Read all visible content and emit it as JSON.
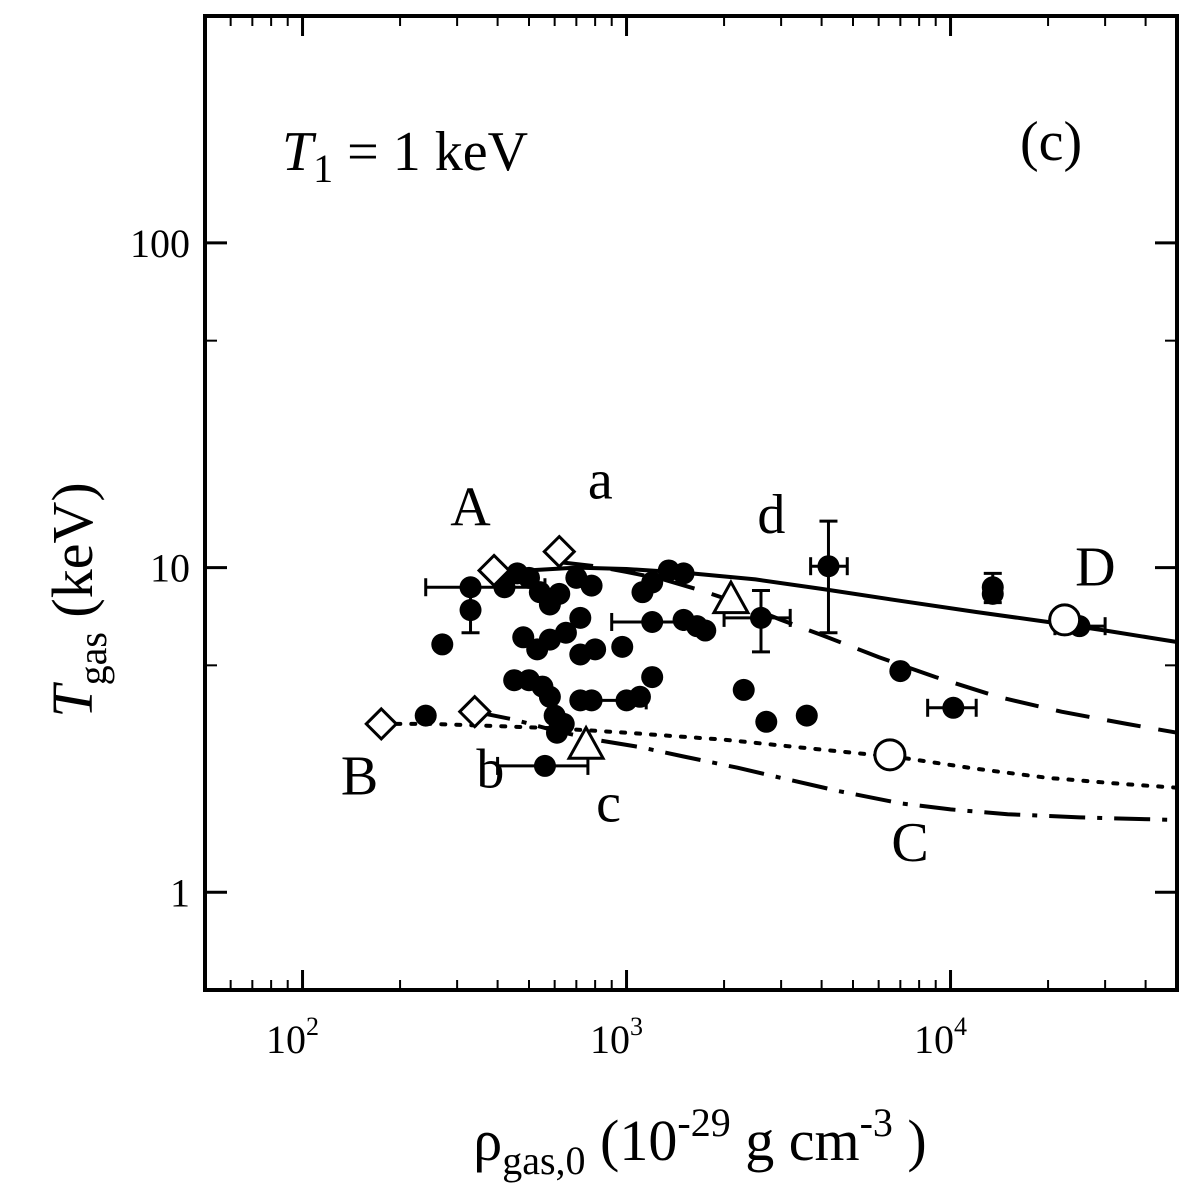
{
  "chart_data": {
    "type": "scatter",
    "title": "",
    "panel_label": "(c)",
    "annotation": {
      "symbol": "T",
      "subscript": "1",
      "text": " = 1 keV"
    },
    "xlabel": {
      "symbol": "ρ",
      "subscript": "gas,0",
      "text_pre": " (10",
      "exp": "-29",
      "text_mid": " g cm",
      "exp2": "-3",
      "text_post": " )"
    },
    "ylabel": {
      "symbol": "T",
      "subscript": "gas",
      "text": " (keV)"
    },
    "x_scale": "log",
    "y_scale": "log",
    "xlim": [
      50,
      50000
    ],
    "ylim": [
      0.5,
      500
    ],
    "grid": false,
    "x_ticks": [
      {
        "value": 100,
        "base": "10",
        "exp": "2"
      },
      {
        "value": 1000,
        "base": "10",
        "exp": "3"
      },
      {
        "value": 10000,
        "base": "10",
        "exp": "4"
      }
    ],
    "y_ticks": [
      {
        "value": 1,
        "label": "1"
      },
      {
        "value": 10,
        "label": "10"
      },
      {
        "value": 100,
        "label": "100"
      }
    ],
    "curves": [
      {
        "name": "A",
        "style": "solid",
        "x": [
          400,
          500,
          700,
          1000,
          1500,
          2500,
          4000,
          7000,
          12000,
          20000,
          30000,
          50000
        ],
        "y": [
          9.4,
          9.8,
          10.0,
          9.9,
          9.65,
          9.2,
          8.6,
          7.9,
          7.3,
          6.8,
          6.4,
          5.9
        ]
      },
      {
        "name": "a",
        "style": "dashed",
        "x": [
          620,
          800,
          1000,
          1300,
          1700,
          2200,
          3000,
          4000,
          6000,
          9000,
          14000,
          22000,
          35000,
          50000
        ],
        "y": [
          10.4,
          10.1,
          9.7,
          9.2,
          8.5,
          7.8,
          6.9,
          6.2,
          5.3,
          4.6,
          4.0,
          3.6,
          3.3,
          3.1
        ]
      },
      {
        "name": "B",
        "style": "dotted",
        "x": [
          175,
          250,
          400,
          600,
          1000,
          2000,
          4000,
          7000,
          12000,
          20000,
          35000,
          50000
        ],
        "y": [
          3.3,
          3.3,
          3.25,
          3.2,
          3.1,
          2.95,
          2.75,
          2.6,
          2.4,
          2.25,
          2.15,
          2.1
        ]
      },
      {
        "name": "b",
        "style": "dashdot",
        "x": [
          340,
          450,
          600,
          800,
          1100,
          1500,
          2200,
          3000,
          4500,
          7000,
          10000,
          15000,
          25000,
          50000
        ],
        "y": [
          3.6,
          3.4,
          3.15,
          2.95,
          2.8,
          2.62,
          2.42,
          2.25,
          2.05,
          1.88,
          1.8,
          1.74,
          1.7,
          1.67
        ]
      }
    ],
    "curve_labels": [
      {
        "text": "A",
        "x": 330,
        "y": 13.5
      },
      {
        "text": "a",
        "x": 830,
        "y": 16.3
      },
      {
        "text": "B",
        "x": 150,
        "y": 2.0
      },
      {
        "text": "b",
        "x": 380,
        "y": 2.1
      },
      {
        "text": "c",
        "x": 880,
        "y": 1.65
      },
      {
        "text": "C",
        "x": 7500,
        "y": 1.25
      },
      {
        "text": "d",
        "x": 2800,
        "y": 12.8
      },
      {
        "text": "D",
        "x": 28000,
        "y": 8.8
      }
    ],
    "series": [
      {
        "name": "",
        "marker": "filled-circle",
        "points": [
          {
            "x": 330,
            "y": 7.4,
            "yerr": 1.1
          },
          {
            "x": 270,
            "y": 5.8
          },
          {
            "x": 240,
            "y": 3.5
          },
          {
            "x": 420,
            "y": 8.7
          },
          {
            "x": 460,
            "y": 9.6
          },
          {
            "x": 330,
            "y": 8.7,
            "xerr": [
              240,
              560
            ]
          },
          {
            "x": 500,
            "y": 9.3
          },
          {
            "x": 540,
            "y": 8.4
          },
          {
            "x": 580,
            "y": 7.7
          },
          {
            "x": 620,
            "y": 8.3
          },
          {
            "x": 700,
            "y": 9.3
          },
          {
            "x": 780,
            "y": 8.8
          },
          {
            "x": 720,
            "y": 7.0
          },
          {
            "x": 650,
            "y": 6.3
          },
          {
            "x": 580,
            "y": 6.0
          },
          {
            "x": 530,
            "y": 5.6
          },
          {
            "x": 480,
            "y": 6.1
          },
          {
            "x": 720,
            "y": 5.4
          },
          {
            "x": 800,
            "y": 5.6
          },
          {
            "x": 970,
            "y": 5.7
          },
          {
            "x": 450,
            "y": 4.5
          },
          {
            "x": 500,
            "y": 4.5
          },
          {
            "x": 550,
            "y": 4.3
          },
          {
            "x": 580,
            "y": 4.0
          },
          {
            "x": 600,
            "y": 3.5
          },
          {
            "x": 640,
            "y": 3.3
          },
          {
            "x": 610,
            "y": 3.1
          },
          {
            "x": 720,
            "y": 3.9
          },
          {
            "x": 780,
            "y": 3.9
          },
          {
            "x": 560,
            "y": 2.45,
            "xerr": [
              400,
              760
            ]
          },
          {
            "x": 1000,
            "y": 3.9,
            "xerr": [
              800,
              1150
            ]
          },
          {
            "x": 1100,
            "y": 4.0
          },
          {
            "x": 1200,
            "y": 4.6
          },
          {
            "x": 1120,
            "y": 8.4
          },
          {
            "x": 1200,
            "y": 9.0
          },
          {
            "x": 1350,
            "y": 9.8
          },
          {
            "x": 1500,
            "y": 9.6
          },
          {
            "x": 1200,
            "y": 6.8,
            "xerr": [
              900,
              1500
            ]
          },
          {
            "x": 1500,
            "y": 6.9
          },
          {
            "x": 1650,
            "y": 6.6
          },
          {
            "x": 1750,
            "y": 6.4
          },
          {
            "x": 2600,
            "y": 7.0,
            "xerr": [
              2000,
              3200
            ],
            "yerr": 1.5
          },
          {
            "x": 2300,
            "y": 4.2
          },
          {
            "x": 2700,
            "y": 3.35
          },
          {
            "x": 3600,
            "y": 3.5
          },
          {
            "x": 4200,
            "y": 10.1,
            "xerr": [
              3700,
              4800
            ],
            "yerr": 3.8
          },
          {
            "x": 7000,
            "y": 4.8
          },
          {
            "x": 10200,
            "y": 3.7,
            "xerr": [
              8500,
              12000
            ]
          },
          {
            "x": 13500,
            "y": 8.7,
            "yerr": 0.9
          },
          {
            "x": 13500,
            "y": 8.3
          },
          {
            "x": 25000,
            "y": 6.6,
            "xerr": [
              21000,
              30000
            ]
          }
        ]
      },
      {
        "name": "",
        "marker": "open-diamond",
        "points": [
          {
            "x": 390,
            "y": 9.8
          },
          {
            "x": 620,
            "y": 11.2
          },
          {
            "x": 175,
            "y": 3.3
          },
          {
            "x": 340,
            "y": 3.6
          }
        ]
      },
      {
        "name": "",
        "marker": "open-triangle",
        "points": [
          {
            "x": 2100,
            "y": 8.0
          },
          {
            "x": 750,
            "y": 2.85
          }
        ]
      },
      {
        "name": "",
        "marker": "open-circle",
        "points": [
          {
            "x": 22500,
            "y": 6.9
          },
          {
            "x": 6500,
            "y": 2.65
          }
        ]
      }
    ]
  }
}
